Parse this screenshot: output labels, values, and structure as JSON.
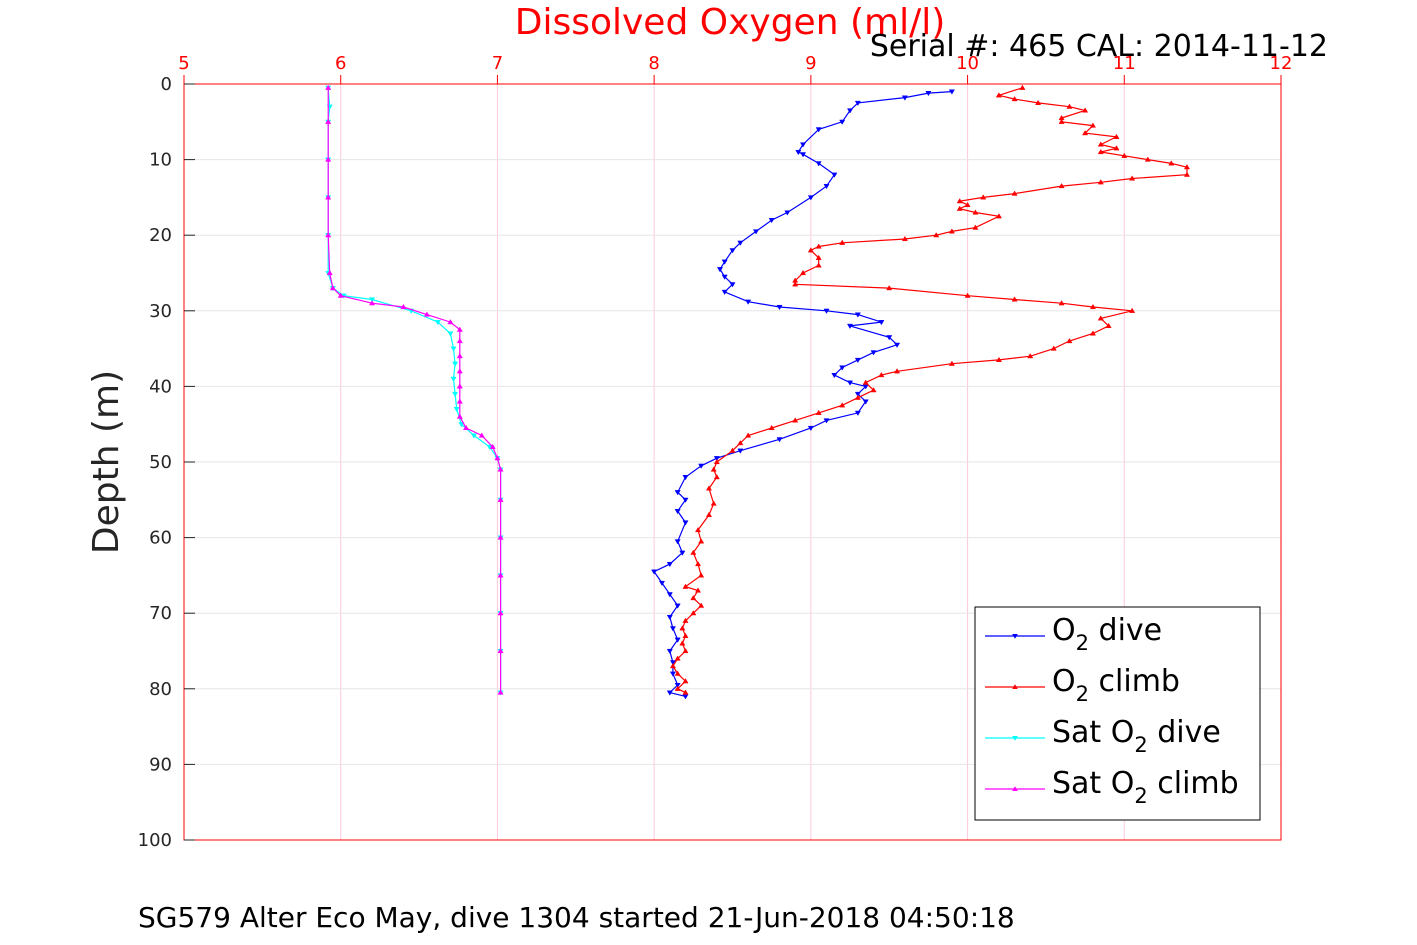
{
  "chart_data": {
    "type": "line",
    "title": "Dissolved Oxygen (ml/l)",
    "serial_text": "Serial #: 465  CAL: 2014-11-12",
    "ylabel": "Depth (m)",
    "caption": "SG579 Alter Eco May, dive 1304 started 21-Jun-2018 04:50:18",
    "xlim": [
      5,
      12
    ],
    "ylim": [
      0,
      100
    ],
    "y_reversed": true,
    "x_axis_position": "top",
    "xticks": [
      "5",
      "6",
      "7",
      "8",
      "9",
      "10",
      "11",
      "12"
    ],
    "yticks": [
      "0",
      "10",
      "20",
      "30",
      "40",
      "50",
      "60",
      "70",
      "80",
      "90",
      "100"
    ],
    "grid": true,
    "legend_position": "bottom-right",
    "series": [
      {
        "legend": [
          "O",
          "2",
          " dive"
        ],
        "color": "#0000ff",
        "marker": "down-triangle",
        "points": [
          [
            9.9,
            1
          ],
          [
            9.75,
            1.2
          ],
          [
            9.6,
            1.8
          ],
          [
            9.3,
            2.5
          ],
          [
            9.25,
            3.5
          ],
          [
            9.2,
            5
          ],
          [
            9.05,
            6
          ],
          [
            8.95,
            8
          ],
          [
            8.92,
            9
          ],
          [
            8.95,
            9.3
          ],
          [
            9.05,
            10.5
          ],
          [
            9.15,
            12
          ],
          [
            9.1,
            13.5
          ],
          [
            9.0,
            15
          ],
          [
            8.85,
            17
          ],
          [
            8.75,
            18
          ],
          [
            8.65,
            19.5
          ],
          [
            8.55,
            21
          ],
          [
            8.5,
            22
          ],
          [
            8.45,
            23.5
          ],
          [
            8.42,
            24.5
          ],
          [
            8.45,
            25.5
          ],
          [
            8.5,
            26.5
          ],
          [
            8.45,
            27.5
          ],
          [
            8.6,
            28.8
          ],
          [
            8.8,
            29.5
          ],
          [
            9.1,
            30
          ],
          [
            9.3,
            30.5
          ],
          [
            9.45,
            31.5
          ],
          [
            9.25,
            32
          ],
          [
            9.5,
            33.5
          ],
          [
            9.55,
            34.5
          ],
          [
            9.4,
            35.5
          ],
          [
            9.3,
            36.5
          ],
          [
            9.2,
            37.5
          ],
          [
            9.15,
            38.5
          ],
          [
            9.25,
            39.5
          ],
          [
            9.35,
            40
          ],
          [
            9.3,
            41
          ],
          [
            9.35,
            42
          ],
          [
            9.3,
            43.5
          ],
          [
            9.1,
            44.5
          ],
          [
            9.0,
            45.5
          ],
          [
            8.8,
            47
          ],
          [
            8.55,
            48.5
          ],
          [
            8.4,
            49.5
          ],
          [
            8.3,
            50.5
          ],
          [
            8.2,
            52
          ],
          [
            8.15,
            54
          ],
          [
            8.2,
            55
          ],
          [
            8.15,
            56.5
          ],
          [
            8.2,
            58
          ],
          [
            8.15,
            60.5
          ],
          [
            8.18,
            62
          ],
          [
            8.1,
            63.5
          ],
          [
            8.0,
            64.5
          ],
          [
            8.05,
            66
          ],
          [
            8.1,
            67.5
          ],
          [
            8.15,
            69
          ],
          [
            8.1,
            70.5
          ],
          [
            8.12,
            72
          ],
          [
            8.15,
            73.5
          ],
          [
            8.1,
            75
          ],
          [
            8.12,
            76.5
          ],
          [
            8.12,
            78
          ],
          [
            8.15,
            79.5
          ],
          [
            8.1,
            80.5
          ],
          [
            8.2,
            81
          ]
        ]
      },
      {
        "legend": [
          "O",
          "2",
          " climb"
        ],
        "color": "#ff0000",
        "marker": "up-triangle",
        "points": [
          [
            8.2,
            80.5
          ],
          [
            8.15,
            80
          ],
          [
            8.2,
            79
          ],
          [
            8.15,
            78
          ],
          [
            8.12,
            77
          ],
          [
            8.15,
            76
          ],
          [
            8.2,
            75
          ],
          [
            8.18,
            74
          ],
          [
            8.2,
            73
          ],
          [
            8.18,
            72
          ],
          [
            8.2,
            71
          ],
          [
            8.25,
            70
          ],
          [
            8.3,
            69
          ],
          [
            8.25,
            68
          ],
          [
            8.28,
            67
          ],
          [
            8.2,
            66.5
          ],
          [
            8.3,
            65
          ],
          [
            8.28,
            63.5
          ],
          [
            8.25,
            62
          ],
          [
            8.3,
            60.5
          ],
          [
            8.28,
            59
          ],
          [
            8.35,
            57
          ],
          [
            8.38,
            55.5
          ],
          [
            8.35,
            53.5
          ],
          [
            8.4,
            52
          ],
          [
            8.38,
            51
          ],
          [
            8.4,
            50
          ],
          [
            8.5,
            48.5
          ],
          [
            8.55,
            47.5
          ],
          [
            8.6,
            46.5
          ],
          [
            8.75,
            45.5
          ],
          [
            8.9,
            44.5
          ],
          [
            9.05,
            43.5
          ],
          [
            9.2,
            42.5
          ],
          [
            9.3,
            41.5
          ],
          [
            9.4,
            40.5
          ],
          [
            9.35,
            39.5
          ],
          [
            9.45,
            38.5
          ],
          [
            9.55,
            38
          ],
          [
            9.9,
            37
          ],
          [
            10.2,
            36.5
          ],
          [
            10.4,
            36
          ],
          [
            10.55,
            35
          ],
          [
            10.65,
            34
          ],
          [
            10.8,
            33
          ],
          [
            10.9,
            32
          ],
          [
            10.85,
            31
          ],
          [
            11.05,
            30
          ],
          [
            10.8,
            29.5
          ],
          [
            10.6,
            29
          ],
          [
            10.3,
            28.5
          ],
          [
            10.0,
            28
          ],
          [
            9.5,
            27
          ],
          [
            8.9,
            26.5
          ],
          [
            8.9,
            26
          ],
          [
            8.95,
            25
          ],
          [
            9.05,
            24
          ],
          [
            9.05,
            23
          ],
          [
            9.0,
            22
          ],
          [
            9.05,
            21.5
          ],
          [
            9.2,
            21
          ],
          [
            9.6,
            20.5
          ],
          [
            9.8,
            20
          ],
          [
            9.9,
            19.5
          ],
          [
            10.05,
            19
          ],
          [
            10.2,
            17.5
          ],
          [
            10.05,
            17
          ],
          [
            9.95,
            16.5
          ],
          [
            10.0,
            16
          ],
          [
            9.95,
            15.5
          ],
          [
            10.1,
            15
          ],
          [
            10.3,
            14.5
          ],
          [
            10.6,
            13.5
          ],
          [
            10.85,
            13
          ],
          [
            11.05,
            12.5
          ],
          [
            11.4,
            12
          ],
          [
            11.4,
            11
          ],
          [
            11.3,
            10.5
          ],
          [
            11.15,
            10
          ],
          [
            11.0,
            9.5
          ],
          [
            10.85,
            9
          ],
          [
            10.95,
            8.5
          ],
          [
            10.85,
            8
          ],
          [
            10.95,
            7
          ],
          [
            10.75,
            6.5
          ],
          [
            10.8,
            5.5
          ],
          [
            10.6,
            5
          ],
          [
            10.6,
            4.5
          ],
          [
            10.75,
            3.5
          ],
          [
            10.65,
            3
          ],
          [
            10.45,
            2.5
          ],
          [
            10.3,
            2
          ],
          [
            10.2,
            1.5
          ],
          [
            10.35,
            0.5
          ]
        ]
      },
      {
        "legend": [
          "Sat O",
          "2",
          " dive"
        ],
        "color": "#00ffff",
        "marker": "down-triangle",
        "points": [
          [
            5.92,
            0.5
          ],
          [
            5.93,
            3
          ],
          [
            5.92,
            5
          ],
          [
            5.92,
            10
          ],
          [
            5.92,
            15
          ],
          [
            5.92,
            20
          ],
          [
            5.92,
            25
          ],
          [
            5.95,
            27
          ],
          [
            6.02,
            28
          ],
          [
            6.2,
            28.5
          ],
          [
            6.45,
            30
          ],
          [
            6.62,
            31.5
          ],
          [
            6.7,
            33
          ],
          [
            6.72,
            35
          ],
          [
            6.73,
            37
          ],
          [
            6.72,
            39
          ],
          [
            6.73,
            41
          ],
          [
            6.74,
            43
          ],
          [
            6.77,
            45
          ],
          [
            6.85,
            46.5
          ],
          [
            6.95,
            48
          ],
          [
            7.0,
            49.5
          ],
          [
            7.02,
            51
          ],
          [
            7.02,
            55
          ],
          [
            7.02,
            60
          ],
          [
            7.02,
            65
          ],
          [
            7.02,
            70
          ],
          [
            7.02,
            75
          ],
          [
            7.02,
            80.5
          ]
        ]
      },
      {
        "legend": [
          "Sat O",
          "2",
          " climb"
        ],
        "color": "#ff00ff",
        "marker": "up-triangle",
        "points": [
          [
            7.02,
            80.5
          ],
          [
            7.02,
            75
          ],
          [
            7.02,
            70
          ],
          [
            7.02,
            65
          ],
          [
            7.02,
            60
          ],
          [
            7.02,
            55
          ],
          [
            7.02,
            51
          ],
          [
            7.0,
            49.5
          ],
          [
            6.97,
            48
          ],
          [
            6.9,
            46.5
          ],
          [
            6.8,
            45.5
          ],
          [
            6.76,
            44
          ],
          [
            6.76,
            42
          ],
          [
            6.76,
            40
          ],
          [
            6.76,
            38
          ],
          [
            6.76,
            36
          ],
          [
            6.76,
            34
          ],
          [
            6.76,
            32.5
          ],
          [
            6.7,
            31.5
          ],
          [
            6.55,
            30.5
          ],
          [
            6.4,
            29.5
          ],
          [
            6.2,
            29
          ],
          [
            6.0,
            28
          ],
          [
            5.95,
            27
          ],
          [
            5.93,
            25
          ],
          [
            5.92,
            20
          ],
          [
            5.92,
            15
          ],
          [
            5.92,
            10
          ],
          [
            5.92,
            5
          ],
          [
            5.92,
            0.5
          ]
        ]
      }
    ]
  }
}
